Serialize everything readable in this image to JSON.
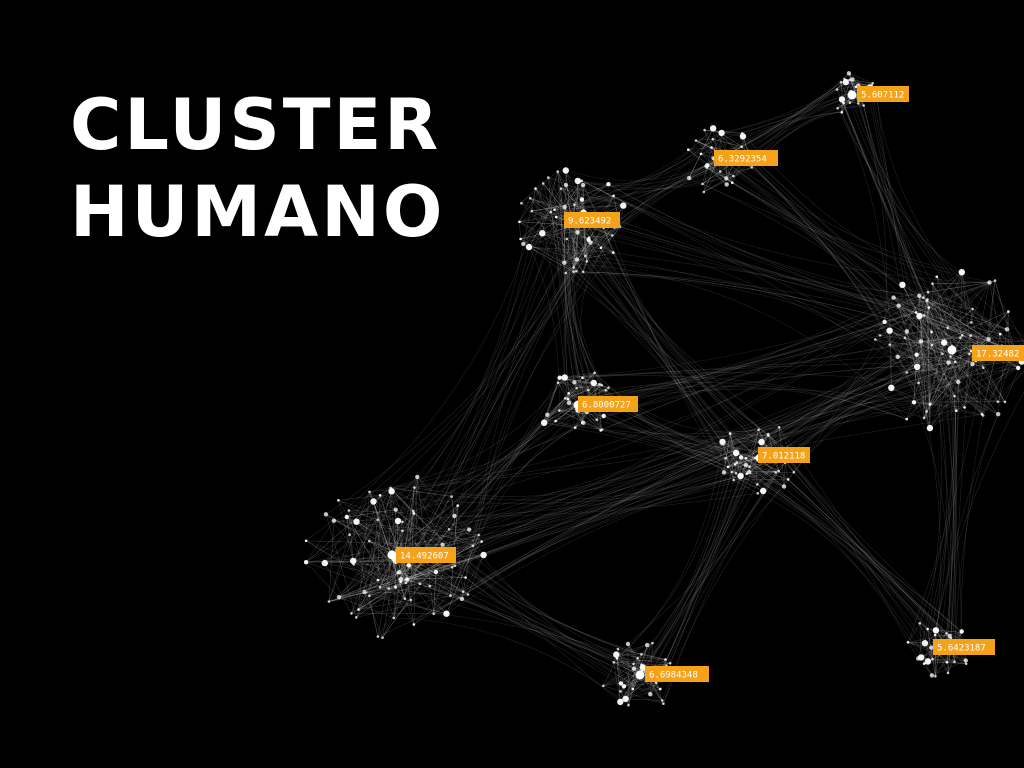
{
  "title": {
    "line1": "CLUSTER",
    "line2": "HUMANO"
  },
  "colors": {
    "background": "#000000",
    "title": "#ffffff",
    "label_background": "#f5a21b",
    "label_text": "#ffffff",
    "node": "#ffffff",
    "edge": "#ffffff"
  },
  "clusters": [
    {
      "id": "c1",
      "label": "5.607112"
    },
    {
      "id": "c2",
      "label": "6.3292354"
    },
    {
      "id": "c3",
      "label": "9.623492"
    },
    {
      "id": "c4",
      "label": "17.32482"
    },
    {
      "id": "c5",
      "label": "6.8000727"
    },
    {
      "id": "c6",
      "label": "7.012118"
    },
    {
      "id": "c7",
      "label": "14.492607"
    },
    {
      "id": "c8",
      "label": "6.6984348"
    },
    {
      "id": "c9",
      "label": "5.6423187"
    }
  ],
  "links": [
    [
      "c1",
      "c2"
    ],
    [
      "c1",
      "c4"
    ],
    [
      "c2",
      "c3"
    ],
    [
      "c2",
      "c4"
    ],
    [
      "c3",
      "c5"
    ],
    [
      "c3",
      "c4"
    ],
    [
      "c3",
      "c7"
    ],
    [
      "c5",
      "c7"
    ],
    [
      "c5",
      "c6"
    ],
    [
      "c5",
      "c4"
    ],
    [
      "c6",
      "c4"
    ],
    [
      "c7",
      "c8"
    ],
    [
      "c7",
      "c6"
    ],
    [
      "c7",
      "c4"
    ],
    [
      "c8",
      "c6"
    ],
    [
      "c4",
      "c9"
    ],
    [
      "c6",
      "c9"
    ],
    [
      "c3",
      "c6"
    ]
  ]
}
